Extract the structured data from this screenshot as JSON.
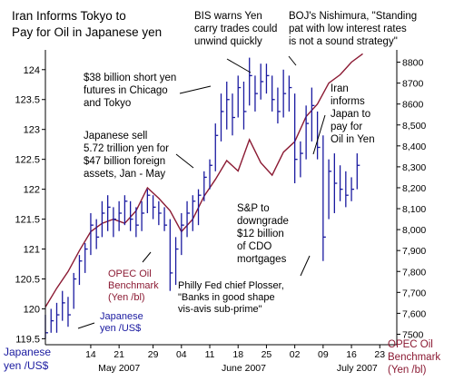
{
  "chart_data": {
    "type": "line",
    "title": "Iran Informs Tokyo to Pay for Oil in Japanese yen",
    "title_lines": [
      "Iran Informs Tokyo to",
      "Pay for Oil in Japanese yen"
    ],
    "left_axis": {
      "label_lines": [
        "Japanese",
        "yen /US$"
      ],
      "range": [
        119.4,
        124.3
      ],
      "ticks": [
        "124",
        "123.5",
        "123",
        "122.5",
        "122",
        "121.5",
        "121",
        "120.5",
        "120",
        "119.5"
      ],
      "tick_values": [
        124,
        123.5,
        123,
        122.5,
        122,
        121.5,
        121,
        120.5,
        120,
        119.5
      ]
    },
    "right_axis": {
      "label_lines": [
        "OPEC Oil",
        "Benchmark",
        "(Yen /bl)"
      ],
      "range": [
        7450,
        8850
      ],
      "ticks": [
        "8800",
        "8700",
        "8600",
        "8,500",
        "8,400",
        "8,300",
        "8,200",
        "8,100",
        "8,000",
        "7,900",
        "7,800",
        "7,700",
        "7,600",
        "7500"
      ],
      "tick_values": [
        8800,
        8700,
        8600,
        8500,
        8400,
        8300,
        8200,
        8100,
        8000,
        7900,
        7800,
        7700,
        7600,
        7500
      ]
    },
    "x_axis": {
      "day_ticks": [
        "14",
        "21",
        "29",
        "04",
        "11",
        "18",
        "25",
        "02",
        "09",
        "16",
        "23"
      ],
      "day_positions": [
        8,
        13,
        19,
        24,
        29,
        34,
        39,
        44,
        49,
        54,
        59
      ],
      "months": [
        {
          "label": "May 2007",
          "at": 13
        },
        {
          "label": "June 2007",
          "at": 35
        },
        {
          "label": "July 2007",
          "at": 55
        }
      ],
      "range": [
        0,
        62
      ]
    },
    "series": [
      {
        "name": "Japanese yen /US$",
        "axis": "left",
        "color": "#1a1aa0",
        "style": "hlc_bars",
        "bars": [
          [
            0,
            119.9,
            119.5,
            119.6
          ],
          [
            1,
            120.0,
            119.6,
            119.8
          ],
          [
            2,
            120.1,
            119.6,
            119.9
          ],
          [
            3,
            120.3,
            119.8,
            120.1
          ],
          [
            4,
            120.2,
            119.7,
            119.9
          ],
          [
            5,
            120.6,
            120.0,
            120.5
          ],
          [
            6,
            120.9,
            120.4,
            120.8
          ],
          [
            7,
            121.1,
            120.6,
            121.0
          ],
          [
            8,
            121.6,
            120.9,
            121.4
          ],
          [
            9,
            121.5,
            121.0,
            121.2
          ],
          [
            10,
            121.8,
            121.2,
            121.6
          ],
          [
            11,
            121.9,
            121.3,
            121.7
          ],
          [
            12,
            121.7,
            121.2,
            121.5
          ],
          [
            13,
            121.8,
            121.3,
            121.6
          ],
          [
            14,
            121.9,
            121.4,
            121.8
          ],
          [
            15,
            121.8,
            121.3,
            121.5
          ],
          [
            16,
            121.7,
            121.2,
            121.4
          ],
          [
            17,
            121.8,
            121.3,
            121.6
          ],
          [
            18,
            122.0,
            121.6,
            121.9
          ],
          [
            19,
            121.9,
            121.5,
            121.7
          ],
          [
            20,
            121.8,
            121.4,
            121.6
          ],
          [
            21,
            121.7,
            121.3,
            121.4
          ],
          [
            22,
            121.5,
            120.3,
            120.6
          ],
          [
            23,
            121.2,
            120.4,
            121.0
          ],
          [
            24,
            121.6,
            120.9,
            121.4
          ],
          [
            25,
            121.8,
            121.2,
            121.6
          ],
          [
            26,
            121.9,
            121.3,
            121.8
          ],
          [
            27,
            122.0,
            121.4,
            121.9
          ],
          [
            28,
            122.3,
            121.8,
            122.2
          ],
          [
            29,
            122.5,
            122.0,
            122.4
          ],
          [
            30,
            123.1,
            122.3,
            122.9
          ],
          [
            31,
            123.6,
            122.8,
            123.3
          ],
          [
            32,
            123.8,
            123.0,
            123.5
          ],
          [
            33,
            123.6,
            122.9,
            123.2
          ],
          [
            34,
            123.9,
            123.2,
            123.7
          ],
          [
            35,
            123.8,
            123.0,
            123.3
          ],
          [
            36,
            124.2,
            123.4,
            123.9
          ],
          [
            37,
            123.9,
            123.3,
            123.6
          ],
          [
            38,
            124.1,
            123.5,
            123.8
          ],
          [
            39,
            124.1,
            123.6,
            123.9
          ],
          [
            40,
            123.9,
            123.3,
            123.5
          ],
          [
            41,
            123.7,
            123.1,
            123.3
          ],
          [
            42,
            124.0,
            123.2,
            123.6
          ],
          [
            43,
            123.9,
            123.3,
            123.7
          ],
          [
            44,
            123.6,
            122.1,
            122.5
          ],
          [
            45,
            122.8,
            122.2,
            122.6
          ],
          [
            46,
            123.4,
            122.5,
            123.1
          ],
          [
            47,
            123.7,
            122.8,
            123.4
          ],
          [
            48,
            123.3,
            122.5,
            122.7
          ],
          [
            49,
            122.9,
            120.8,
            121.2
          ],
          [
            50,
            122.5,
            121.5,
            122.3
          ],
          [
            51,
            122.6,
            121.6,
            122.1
          ],
          [
            52,
            122.4,
            121.8,
            122.0
          ],
          [
            53,
            122.3,
            121.7,
            121.9
          ],
          [
            54,
            122.2,
            121.8,
            122.0
          ],
          [
            55,
            122.6,
            122.0,
            122.4
          ]
        ]
      },
      {
        "name": "OPEC Oil Benchmark (Yen /bl)",
        "axis": "right",
        "color": "#8b1a33",
        "style": "line",
        "x": [
          0,
          2,
          4,
          6,
          8,
          10,
          12,
          14,
          16,
          18,
          20,
          22,
          24,
          26,
          28,
          30,
          32,
          34,
          36,
          38,
          40,
          42,
          44,
          46,
          48,
          50,
          52,
          54,
          56
        ],
        "values": [
          7630,
          7720,
          7800,
          7900,
          7990,
          8030,
          8050,
          8030,
          8090,
          8200,
          8150,
          8090,
          7990,
          8050,
          8160,
          8240,
          8330,
          8280,
          8430,
          8320,
          8260,
          8370,
          8420,
          8540,
          8600,
          8700,
          8740,
          8800,
          8840
        ]
      }
    ],
    "annotations": [
      {
        "lines": [
          "$38 billion short yen",
          "futures in Chicago",
          "and Tokyo"
        ]
      },
      {
        "lines": [
          "BIS warns Yen",
          "carry trades could",
          "unwind quickly"
        ]
      },
      {
        "lines": [
          "BOJ's Nishimura, \"Standing",
          "pat with low interest rates",
          "is not a sound strategy\""
        ]
      },
      {
        "lines": [
          "Japanese sell",
          "5.72 trillion yen for",
          "$47 billion foreign",
          "assets, Jan - May"
        ]
      },
      {
        "lines": [
          "Iran",
          "informs",
          "Japan to",
          "pay for",
          "Oil in Yen"
        ]
      },
      {
        "lines": [
          "S&P to",
          "downgrade",
          "$12 billion",
          "of CDO",
          "mortgages"
        ]
      },
      {
        "lines": [
          "OPEC Oil",
          "Benchmark",
          "(Yen /bl)"
        ]
      },
      {
        "lines": [
          "Japanese",
          "yen /US$"
        ]
      },
      {
        "lines": [
          "Philly Fed chief Plosser,",
          "\"Banks in good shape",
          "vis-avis sub-prime\""
        ]
      }
    ],
    "grid": false,
    "legend": "none"
  }
}
